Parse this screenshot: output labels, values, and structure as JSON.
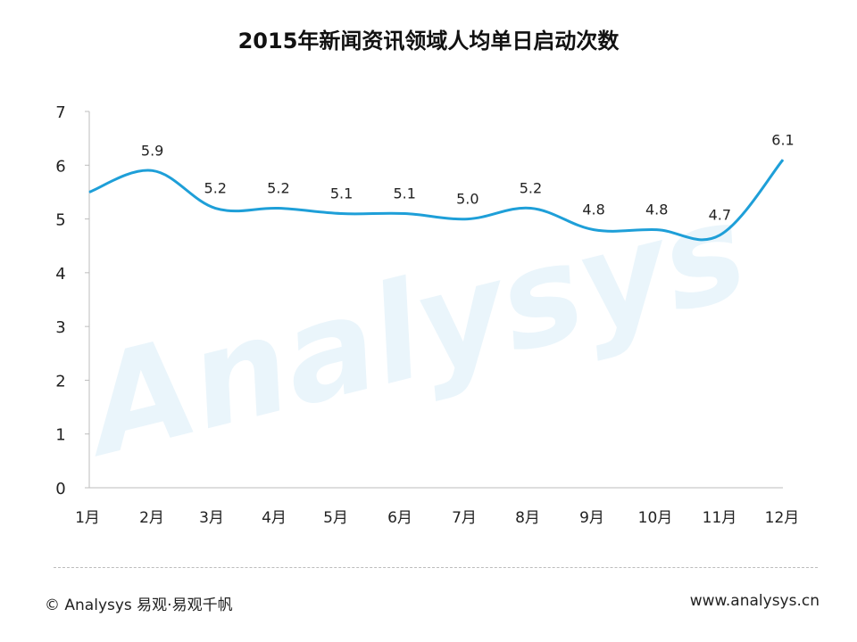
{
  "chart_data": {
    "type": "line",
    "title": "2015年新闻资讯领域人均单日启动次数",
    "xlabel": "",
    "ylabel": "",
    "categories": [
      "1月",
      "2月",
      "3月",
      "4月",
      "5月",
      "6月",
      "7月",
      "8月",
      "9月",
      "10月",
      "11月",
      "12月"
    ],
    "series": [
      {
        "values": [
          5.5,
          5.9,
          5.2,
          5.2,
          5.1,
          5.1,
          5.0,
          5.2,
          4.8,
          4.8,
          4.7,
          6.1
        ],
        "labels": [
          "",
          "5.9",
          "5.2",
          "5.2",
          "5.1",
          "5.1",
          "5.0",
          "5.2",
          "4.8",
          "4.8",
          "4.7",
          "6.1"
        ],
        "color": "#1e9fd8"
      }
    ],
    "ylim": [
      0,
      7
    ],
    "yticks": [
      0,
      1,
      2,
      3,
      4,
      5,
      6,
      7
    ],
    "grid": false,
    "legend": "none"
  },
  "watermark": "Analysys",
  "footer": {
    "left": "© Analysys 易观·易观千帆",
    "right": "www.analysys.cn"
  },
  "colors": {
    "line": "#1e9fd8",
    "watermark": "#eaf5fb",
    "axis": "#bdbdbd"
  }
}
